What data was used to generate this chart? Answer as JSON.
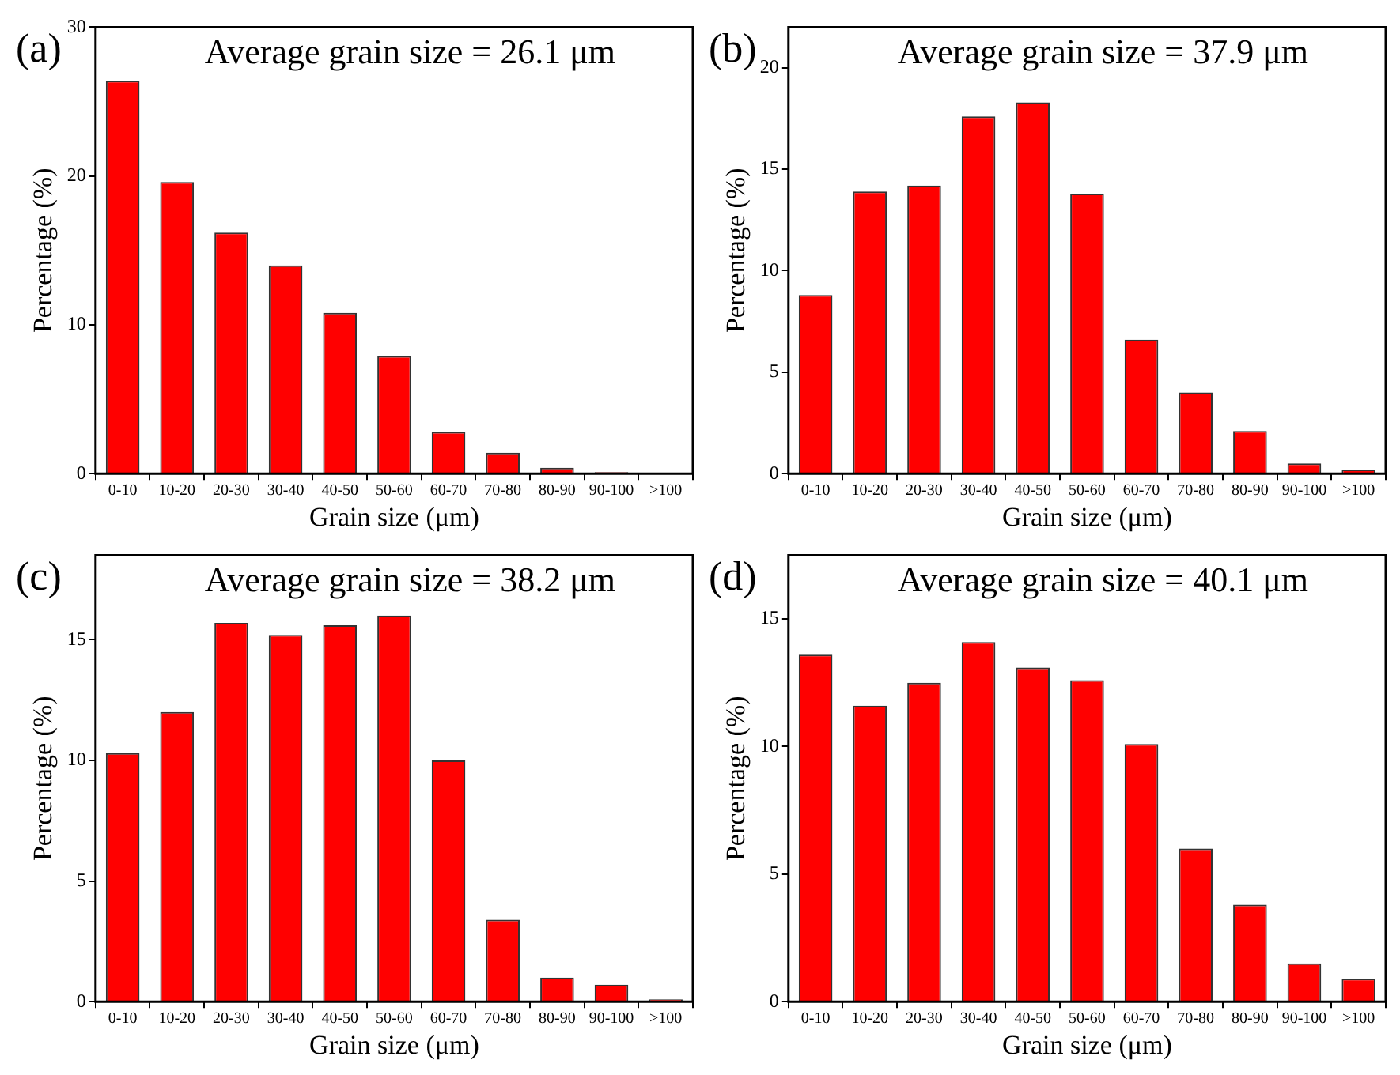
{
  "chart_data": [
    {
      "type": "bar",
      "title": "Average grain size = 26.1 μm",
      "annotations": [
        "(a)"
      ],
      "xlabel": "Grain size (μm)",
      "ylabel": "Percentage (%)",
      "categories": [
        "0-10",
        "10-20",
        "20-30",
        "30-40",
        "40-50",
        "50-60",
        "60-70",
        "70-80",
        "80-90",
        "90-100",
        ">100"
      ],
      "color": "#ff0000",
      "values": [
        26.4,
        19.6,
        16.2,
        14.0,
        10.8,
        7.9,
        2.8,
        1.4,
        0.4,
        0.1,
        0
      ],
      "ylim": [
        0,
        30
      ],
      "yticks": [
        0,
        10,
        20,
        30
      ]
    },
    {
      "type": "bar",
      "title": "Average grain size = 37.9 μm",
      "annotations": [
        "(b)"
      ],
      "xlabel": "Grain size (μm)",
      "ylabel": "Percentage (%)",
      "categories": [
        "0-10",
        "10-20",
        "20-30",
        "30-40",
        "40-50",
        "50-60",
        "60-70",
        "70-80",
        "80-90",
        "90-100",
        ">100"
      ],
      "color": "#ff0000",
      "values": [
        8.8,
        13.9,
        14.2,
        17.6,
        18.3,
        13.8,
        6.6,
        4.0,
        2.1,
        0.5,
        0.2
      ],
      "ylim": [
        0,
        22
      ],
      "yticks": [
        0,
        5,
        10,
        15,
        20
      ]
    },
    {
      "type": "bar",
      "title": "Average grain size = 38.2 μm",
      "annotations": [
        "(c)"
      ],
      "xlabel": "Grain size (μm)",
      "ylabel": "Percentage (%)",
      "categories": [
        "0-10",
        "10-20",
        "20-30",
        "30-40",
        "40-50",
        "50-60",
        "60-70",
        "70-80",
        "80-90",
        "90-100",
        ">100"
      ],
      "color": "#ff0000",
      "values": [
        10.3,
        12.0,
        15.7,
        15.2,
        15.6,
        16.0,
        10.0,
        3.4,
        1.0,
        0.7,
        0.1
      ],
      "ylim": [
        0,
        18.5
      ],
      "yticks": [
        0,
        5,
        10,
        15
      ]
    },
    {
      "type": "bar",
      "title": "Average grain size = 40.1 μm",
      "annotations": [
        "(d)"
      ],
      "xlabel": "Grain size (μm)",
      "ylabel": "Percentage (%)",
      "categories": [
        "0-10",
        "10-20",
        "20-30",
        "30-40",
        "40-50",
        "50-60",
        "60-70",
        "70-80",
        "80-90",
        "90-100",
        ">100"
      ],
      "color": "#ff0000",
      "values": [
        13.6,
        11.6,
        12.5,
        14.1,
        13.1,
        12.6,
        10.1,
        6.0,
        3.8,
        1.5,
        0.9
      ],
      "ylim": [
        0,
        17.5
      ],
      "yticks": [
        0,
        5,
        10,
        15
      ]
    }
  ]
}
